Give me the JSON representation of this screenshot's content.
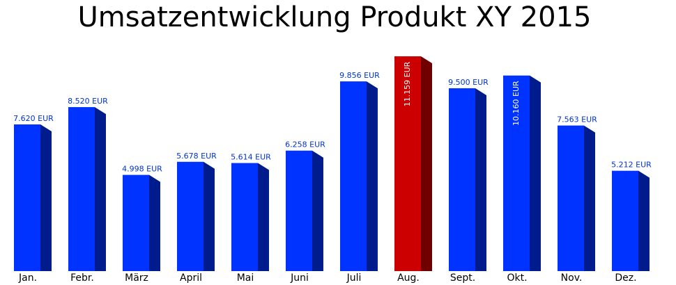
{
  "chart_data": {
    "type": "bar3d",
    "title": "Umsatzentwicklung Produkt XY 2015",
    "categories": [
      "Jan.",
      "Febr.",
      "März",
      "April",
      "Mai",
      "Juni",
      "Juli",
      "Aug.",
      "Sept.",
      "Okt.",
      "Nov.",
      "Dez."
    ],
    "values": [
      7620,
      8520,
      4998,
      5678,
      5614,
      6258,
      9856,
      11159,
      9500,
      10160,
      7563,
      5212
    ],
    "value_labels": [
      "7.620 EUR",
      "8.520 EUR",
      "4.998 EUR",
      "5.678 EUR",
      "5.614 EUR",
      "6.258 EUR",
      "9.856 EUR",
      "11.159 EUR",
      "9.500 EUR",
      "10.160 EUR",
      "7.563 EUR",
      "5.212 EUR"
    ],
    "colors": [
      "#0033ff",
      "#0033ff",
      "#0033ff",
      "#0033ff",
      "#0033ff",
      "#0033ff",
      "#0033ff",
      "#cc0000",
      "#0033ff",
      "#0033ff",
      "#0033ff",
      "#0033ff"
    ]
  }
}
